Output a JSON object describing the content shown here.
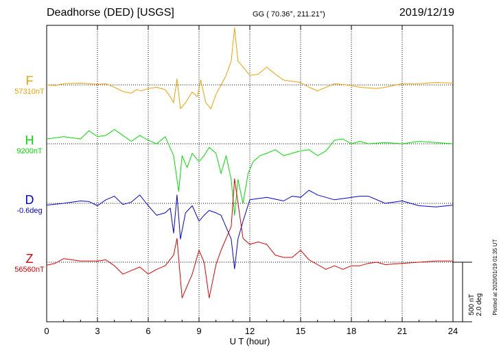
{
  "header": {
    "title": "Deadhorse (DED)  [USGS]",
    "coords": "GG ( 70.36°, 211.21°)",
    "date": "2019/12/19"
  },
  "footer": {
    "plotted": "Plotted at 2020/01/19 01:35 UT"
  },
  "scale": {
    "nt": "500 nT",
    "deg": "2.0 deg"
  },
  "chart_data": {
    "type": "line",
    "xlabel": "U T (hour)",
    "xlim": [
      0,
      24
    ],
    "xticks": [
      0,
      3,
      6,
      9,
      12,
      15,
      18,
      21,
      24
    ],
    "xtick_labels": [
      "0",
      "3",
      "6",
      "9",
      "12",
      "15",
      "18",
      "21",
      "24"
    ],
    "grid": true,
    "series": [
      {
        "name": "F",
        "baseline_label": "57310nT",
        "color": "#f0a000",
        "baseline_nT": 57310,
        "points": [
          [
            0,
            0
          ],
          [
            0.5,
            -5
          ],
          [
            1,
            10
          ],
          [
            2,
            15
          ],
          [
            3,
            5
          ],
          [
            3.5,
            10
          ],
          [
            4,
            -20
          ],
          [
            4.5,
            -55
          ],
          [
            5,
            -70
          ],
          [
            5.3,
            -40
          ],
          [
            5.6,
            -50
          ],
          [
            6,
            -30
          ],
          [
            6.5,
            -20
          ],
          [
            7,
            -40
          ],
          [
            7.3,
            -100
          ],
          [
            7.5,
            -150
          ],
          [
            7.7,
            50
          ],
          [
            7.9,
            -200
          ],
          [
            8.2,
            -150
          ],
          [
            8.6,
            -60
          ],
          [
            8.9,
            -100
          ],
          [
            9.1,
            40
          ],
          [
            9.4,
            -150
          ],
          [
            9.7,
            -200
          ],
          [
            10,
            -80
          ],
          [
            10.3,
            0
          ],
          [
            10.6,
            80
          ],
          [
            10.9,
            200
          ],
          [
            11.1,
            480
          ],
          [
            11.3,
            200
          ],
          [
            11.6,
            150
          ],
          [
            12,
            80
          ],
          [
            12.5,
            90
          ],
          [
            13,
            150
          ],
          [
            13.5,
            90
          ],
          [
            14,
            40
          ],
          [
            15,
            20
          ],
          [
            15.5,
            -20
          ],
          [
            16,
            -50
          ],
          [
            17,
            10
          ],
          [
            18,
            -5
          ],
          [
            18.5,
            -20
          ],
          [
            19.5,
            -30
          ],
          [
            20,
            -20
          ],
          [
            21,
            10
          ],
          [
            22,
            10
          ],
          [
            23,
            20
          ],
          [
            24,
            15
          ]
        ]
      },
      {
        "name": "H",
        "baseline_label": "9200nT",
        "color": "#00dd00",
        "baseline_nT": 9200,
        "points": [
          [
            0,
            40
          ],
          [
            1,
            60
          ],
          [
            2,
            40
          ],
          [
            2.5,
            110
          ],
          [
            3,
            60
          ],
          [
            3.5,
            70
          ],
          [
            4,
            120
          ],
          [
            4.5,
            70
          ],
          [
            5,
            20
          ],
          [
            5.5,
            70
          ],
          [
            6,
            30
          ],
          [
            6.5,
            0
          ],
          [
            7,
            60
          ],
          [
            7.5,
            -100
          ],
          [
            7.8,
            -400
          ],
          [
            8,
            -100
          ],
          [
            8.3,
            -200
          ],
          [
            8.6,
            -80
          ],
          [
            9,
            -150
          ],
          [
            9.3,
            -100
          ],
          [
            9.6,
            -30
          ],
          [
            10,
            -80
          ],
          [
            10.3,
            -250
          ],
          [
            10.6,
            -100
          ],
          [
            10.9,
            -300
          ],
          [
            11.1,
            -600
          ],
          [
            11.3,
            -300
          ],
          [
            11.6,
            -500
          ],
          [
            11.9,
            -250
          ],
          [
            12.2,
            -150
          ],
          [
            12.6,
            -100
          ],
          [
            13,
            -80
          ],
          [
            13.5,
            -50
          ],
          [
            14,
            -100
          ],
          [
            14.5,
            -80
          ],
          [
            15,
            -60
          ],
          [
            15.5,
            -50
          ],
          [
            16,
            -100
          ],
          [
            16.5,
            -60
          ],
          [
            17,
            30
          ],
          [
            17.5,
            40
          ],
          [
            18,
            0
          ],
          [
            18.5,
            20
          ],
          [
            19,
            0
          ],
          [
            20,
            10
          ],
          [
            21,
            0
          ],
          [
            22,
            20
          ],
          [
            23,
            10
          ],
          [
            24,
            0
          ]
        ]
      },
      {
        "name": "D",
        "baseline_label": "-0.6deg",
        "color": "#0000dd",
        "baseline_deg": -0.6,
        "points": [
          [
            0,
            -15
          ],
          [
            1,
            0
          ],
          [
            2,
            20
          ],
          [
            2.5,
            15
          ],
          [
            3,
            -20
          ],
          [
            3.5,
            30
          ],
          [
            4,
            60
          ],
          [
            4.5,
            -10
          ],
          [
            5,
            10
          ],
          [
            5.5,
            70
          ],
          [
            6,
            -20
          ],
          [
            6.5,
            -100
          ],
          [
            7,
            -80
          ],
          [
            7.3,
            -40
          ],
          [
            7.5,
            -250
          ],
          [
            7.7,
            70
          ],
          [
            7.9,
            -300
          ],
          [
            8.2,
            -80
          ],
          [
            8.6,
            -20
          ],
          [
            9,
            -150
          ],
          [
            9.3,
            -100
          ],
          [
            9.6,
            -60
          ],
          [
            10,
            -80
          ],
          [
            10.3,
            -100
          ],
          [
            10.6,
            -200
          ],
          [
            10.9,
            -300
          ],
          [
            11.1,
            -550
          ],
          [
            11.3,
            -300
          ],
          [
            11.6,
            -150
          ],
          [
            12,
            30
          ],
          [
            12.5,
            40
          ],
          [
            13,
            50
          ],
          [
            14,
            20
          ],
          [
            14.5,
            60
          ],
          [
            15,
            50
          ],
          [
            15.5,
            110
          ],
          [
            16,
            70
          ],
          [
            16.5,
            50
          ],
          [
            17,
            30
          ],
          [
            17.5,
            40
          ],
          [
            18,
            50
          ],
          [
            18.5,
            60
          ],
          [
            19,
            60
          ],
          [
            20,
            0
          ],
          [
            21,
            20
          ],
          [
            22,
            -20
          ],
          [
            23,
            -30
          ],
          [
            24,
            -15
          ]
        ]
      },
      {
        "name": "Z",
        "baseline_label": "56560nT",
        "color": "#dd0000",
        "baseline_nT": 56560,
        "points": [
          [
            0,
            -25
          ],
          [
            0.5,
            -10
          ],
          [
            1,
            30
          ],
          [
            2,
            10
          ],
          [
            3,
            10
          ],
          [
            3.5,
            20
          ],
          [
            4,
            -30
          ],
          [
            4.5,
            -100
          ],
          [
            5,
            -70
          ],
          [
            5.5,
            -40
          ],
          [
            6,
            -100
          ],
          [
            6.5,
            -60
          ],
          [
            7,
            -30
          ],
          [
            7.5,
            60
          ],
          [
            7.7,
            200
          ],
          [
            8,
            -300
          ],
          [
            8.3,
            -200
          ],
          [
            8.6,
            -100
          ],
          [
            9,
            100
          ],
          [
            9.3,
            0
          ],
          [
            9.6,
            -300
          ],
          [
            10,
            -20
          ],
          [
            10.3,
            100
          ],
          [
            10.6,
            200
          ],
          [
            10.9,
            300
          ],
          [
            11.1,
            700
          ],
          [
            11.3,
            500
          ],
          [
            11.6,
            200
          ],
          [
            12,
            150
          ],
          [
            12.5,
            170
          ],
          [
            13,
            150
          ],
          [
            13.5,
            60
          ],
          [
            14,
            40
          ],
          [
            14.5,
            40
          ],
          [
            15,
            100
          ],
          [
            15.5,
            20
          ],
          [
            16,
            -20
          ],
          [
            16.5,
            -60
          ],
          [
            17,
            -30
          ],
          [
            17.5,
            -60
          ],
          [
            18,
            -30
          ],
          [
            18.5,
            -30
          ],
          [
            19,
            -10
          ],
          [
            19.5,
            0
          ],
          [
            20,
            -20
          ],
          [
            21,
            -10
          ],
          [
            22,
            0
          ],
          [
            23,
            10
          ],
          [
            24,
            10
          ]
        ]
      }
    ]
  }
}
